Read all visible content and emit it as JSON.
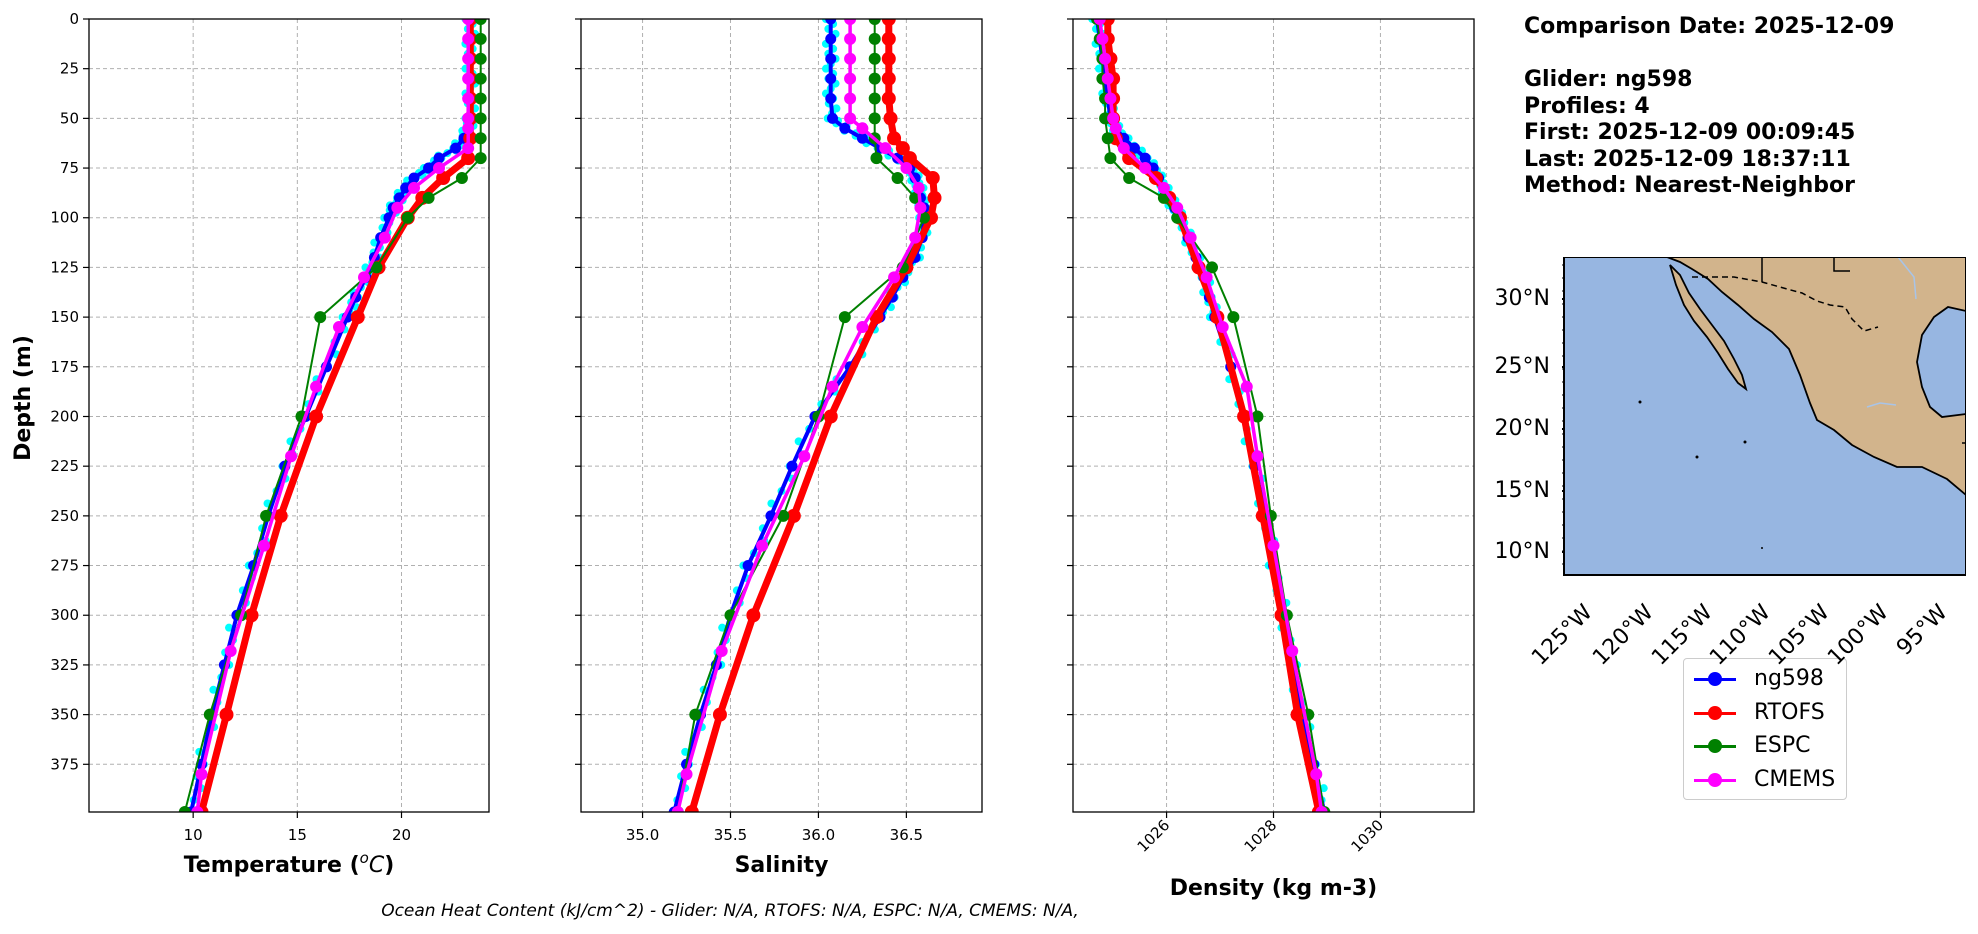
{
  "colors": {
    "glider": "#0000ff",
    "glider_raw": "#00ffff",
    "rtofs": "#ff0000",
    "espc": "#008000",
    "cmems": "#ff00ff",
    "ocean": "#97b6e1",
    "land": "#d2b48c",
    "grid": "#b0b0b0"
  },
  "info": {
    "comparison_date": "Comparison Date: 2025-12-09",
    "glider": "Glider: ng598",
    "profiles": "Profiles: 4",
    "first": "First: 2025-12-09 00:09:45",
    "last": "Last: 2025-12-09 18:37:11",
    "method": "Method: Nearest-Neighbor"
  },
  "legend": [
    {
      "name": "ng598",
      "color": "#0000ff"
    },
    {
      "name": "RTOFS",
      "color": "#ff0000"
    },
    {
      "name": "ESPC",
      "color": "#008000"
    },
    {
      "name": "CMEMS",
      "color": "#ff00ff"
    }
  ],
  "map": {
    "lat_ticks": [
      "30°N",
      "25°N",
      "20°N",
      "15°N",
      "10°N"
    ],
    "lon_ticks": [
      "125°W",
      "120°W",
      "115°W",
      "110°W",
      "105°W",
      "100°W",
      "95°W"
    ]
  },
  "footer": "Ocean Heat Content (kJ/cm^2) - Glider: N/A,  RTOFS: N/A,  ESPC: N/A,  CMEMS: N/A,",
  "chart_data": [
    {
      "type": "line",
      "xlabel": "Temperature ($^{o}C$)",
      "xlabel_display": "Temperature (",
      "xlabel_unit": "C",
      "xlabel_suffix": ")",
      "ylabel": "Depth (m)",
      "xlim": [
        5,
        24.2
      ],
      "ylim": [
        399,
        0
      ],
      "xticks": [
        10,
        15,
        20
      ],
      "yticks": [
        0,
        25,
        50,
        75,
        100,
        125,
        150,
        175,
        200,
        225,
        250,
        275,
        300,
        325,
        350,
        375
      ],
      "grid": true,
      "series": [
        {
          "name": "ng598",
          "depth": [
            0,
            10,
            20,
            30,
            40,
            50,
            55,
            60,
            65,
            70,
            75,
            80,
            85,
            90,
            95,
            100,
            110,
            120,
            130,
            140,
            150,
            175,
            200,
            225,
            250,
            275,
            300,
            325,
            350,
            375,
            399
          ],
          "values": [
            23.3,
            23.3,
            23.3,
            23.3,
            23.3,
            23.3,
            23.2,
            23.0,
            22.6,
            21.8,
            21.3,
            20.6,
            20.2,
            19.9,
            19.6,
            19.4,
            19.0,
            18.7,
            18.3,
            17.8,
            17.4,
            16.4,
            15.4,
            14.4,
            13.6,
            12.9,
            12.1,
            11.5,
            10.9,
            10.4,
            9.9
          ]
        },
        {
          "name": "RTOFS",
          "depth": [
            0,
            10,
            20,
            30,
            40,
            50,
            60,
            70,
            80,
            90,
            100,
            125,
            150,
            200,
            250,
            300,
            350,
            399
          ],
          "values": [
            23.3,
            23.3,
            23.3,
            23.3,
            23.3,
            23.3,
            23.3,
            23.2,
            22.0,
            21.0,
            20.3,
            18.9,
            17.9,
            15.9,
            14.2,
            12.8,
            11.6,
            10.4
          ]
        },
        {
          "name": "ESPC",
          "depth": [
            0,
            10,
            20,
            30,
            40,
            50,
            60,
            70,
            80,
            90,
            100,
            125,
            150,
            200,
            250,
            300,
            350,
            399
          ],
          "values": [
            23.8,
            23.8,
            23.8,
            23.8,
            23.8,
            23.8,
            23.8,
            23.8,
            22.9,
            21.3,
            20.3,
            18.8,
            16.1,
            15.2,
            13.5,
            12.3,
            10.8,
            9.6
          ]
        },
        {
          "name": "CMEMS",
          "depth": [
            0,
            10,
            20,
            30,
            40,
            50,
            55,
            65,
            75,
            85,
            95,
            110,
            130,
            155,
            185,
            220,
            265,
            318,
            380,
            399
          ],
          "values": [
            23.2,
            23.2,
            23.2,
            23.2,
            23.2,
            23.2,
            23.2,
            23.2,
            21.8,
            20.6,
            19.8,
            19.2,
            18.2,
            17.0,
            15.9,
            14.7,
            13.4,
            11.8,
            10.4,
            10.2
          ]
        }
      ]
    },
    {
      "type": "line",
      "xlabel": "Salinity",
      "xlim": [
        34.65,
        36.93
      ],
      "ylim": [
        399,
        0
      ],
      "xticks": [
        35.0,
        35.5,
        36.0,
        36.5
      ],
      "xticklabels": [
        "35.0",
        "35.5",
        "36.0",
        "36.5"
      ],
      "grid": true,
      "series": [
        {
          "name": "ng598",
          "depth": [
            0,
            10,
            20,
            30,
            40,
            50,
            55,
            60,
            65,
            70,
            75,
            80,
            85,
            90,
            95,
            100,
            110,
            120,
            130,
            140,
            150,
            175,
            200,
            225,
            250,
            275,
            300,
            325,
            350,
            375,
            399
          ],
          "values": [
            36.07,
            36.07,
            36.07,
            36.07,
            36.07,
            36.08,
            36.15,
            36.25,
            36.35,
            36.45,
            36.52,
            36.55,
            36.57,
            36.58,
            36.6,
            36.6,
            36.59,
            36.55,
            36.48,
            36.42,
            36.35,
            36.18,
            35.98,
            35.85,
            35.73,
            35.6,
            35.5,
            35.42,
            35.33,
            35.25,
            35.18
          ]
        },
        {
          "name": "RTOFS",
          "depth": [
            0,
            10,
            20,
            30,
            40,
            50,
            60,
            65,
            70,
            80,
            90,
            100,
            125,
            150,
            200,
            250,
            300,
            350,
            399
          ],
          "values": [
            36.4,
            36.4,
            36.4,
            36.4,
            36.4,
            36.41,
            36.43,
            36.48,
            36.52,
            36.65,
            36.66,
            36.64,
            36.5,
            36.33,
            36.07,
            35.86,
            35.63,
            35.44,
            35.28
          ]
        },
        {
          "name": "ESPC",
          "depth": [
            0,
            10,
            20,
            30,
            40,
            50,
            60,
            70,
            80,
            90,
            100,
            125,
            150,
            200,
            250,
            300,
            350,
            399
          ],
          "values": [
            36.32,
            36.32,
            36.32,
            36.32,
            36.32,
            36.32,
            36.32,
            36.33,
            36.45,
            36.55,
            36.6,
            36.48,
            36.15,
            36.0,
            35.8,
            35.5,
            35.3,
            35.2
          ]
        },
        {
          "name": "CMEMS",
          "depth": [
            0,
            10,
            20,
            30,
            40,
            50,
            55,
            65,
            75,
            85,
            95,
            110,
            130,
            155,
            185,
            220,
            265,
            318,
            380,
            399
          ],
          "values": [
            36.18,
            36.18,
            36.18,
            36.18,
            36.18,
            36.18,
            36.25,
            36.38,
            36.5,
            36.57,
            36.58,
            36.55,
            36.43,
            36.25,
            36.08,
            35.92,
            35.68,
            35.45,
            35.25,
            35.2
          ]
        }
      ]
    },
    {
      "type": "line",
      "xlabel": "Density (kg m-3)",
      "xlim": [
        1024.25,
        1031.75
      ],
      "ylim": [
        399,
        0
      ],
      "xticks": [
        1026,
        1028,
        1030
      ],
      "xticklabels": [
        "1026",
        "1028",
        "1030"
      ],
      "grid": true,
      "series": [
        {
          "name": "ng598",
          "depth": [
            0,
            10,
            20,
            30,
            40,
            50,
            55,
            60,
            65,
            70,
            75,
            80,
            85,
            90,
            95,
            100,
            110,
            120,
            130,
            140,
            150,
            175,
            200,
            225,
            250,
            275,
            300,
            325,
            350,
            375,
            399
          ],
          "values": [
            1024.7,
            1024.75,
            1024.8,
            1024.85,
            1024.9,
            1024.95,
            1025.05,
            1025.2,
            1025.4,
            1025.6,
            1025.75,
            1025.85,
            1025.95,
            1026.05,
            1026.15,
            1026.25,
            1026.4,
            1026.55,
            1026.7,
            1026.8,
            1026.9,
            1027.2,
            1027.45,
            1027.65,
            1027.85,
            1028.0,
            1028.2,
            1028.35,
            1028.55,
            1028.75,
            1028.95
          ]
        },
        {
          "name": "RTOFS",
          "depth": [
            0,
            10,
            20,
            30,
            40,
            50,
            60,
            70,
            80,
            90,
            100,
            125,
            150,
            200,
            250,
            300,
            350,
            399
          ],
          "values": [
            1024.9,
            1024.9,
            1024.95,
            1025.0,
            1025.0,
            1025.0,
            1025.05,
            1025.3,
            1025.8,
            1026.05,
            1026.25,
            1026.6,
            1026.95,
            1027.45,
            1027.8,
            1028.15,
            1028.45,
            1028.85
          ]
        },
        {
          "name": "ESPC",
          "depth": [
            0,
            10,
            20,
            30,
            40,
            50,
            60,
            70,
            80,
            90,
            100,
            125,
            150,
            200,
            250,
            300,
            350,
            399
          ],
          "values": [
            1024.7,
            1024.75,
            1024.8,
            1024.8,
            1024.85,
            1024.85,
            1024.9,
            1024.95,
            1025.3,
            1025.95,
            1026.2,
            1026.85,
            1027.25,
            1027.7,
            1027.95,
            1028.25,
            1028.65,
            1028.95
          ]
        },
        {
          "name": "CMEMS",
          "depth": [
            0,
            10,
            20,
            30,
            40,
            50,
            55,
            65,
            75,
            85,
            95,
            110,
            130,
            155,
            185,
            220,
            265,
            318,
            380,
            399
          ],
          "values": [
            1024.75,
            1024.8,
            1024.85,
            1024.9,
            1024.95,
            1025.0,
            1025.05,
            1025.2,
            1025.6,
            1025.95,
            1026.2,
            1026.45,
            1026.75,
            1027.05,
            1027.5,
            1027.7,
            1028.0,
            1028.35,
            1028.8,
            1028.9
          ]
        }
      ]
    }
  ]
}
